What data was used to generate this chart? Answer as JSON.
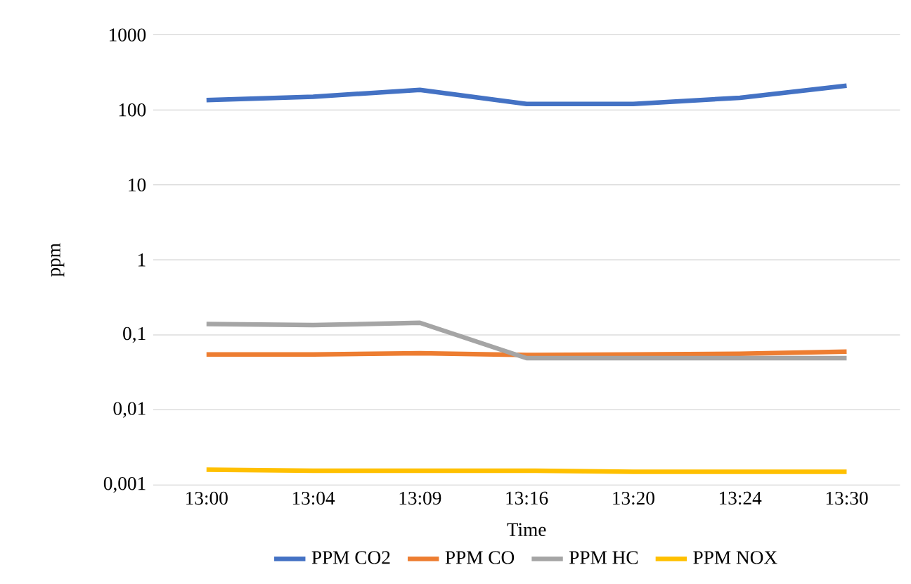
{
  "chart_data": {
    "type": "line",
    "xlabel": "Time",
    "ylabel": "ppm",
    "categories": [
      "13:00",
      "13:04",
      "13:09",
      "13:16",
      "13:20",
      "13:24",
      "13:30"
    ],
    "series": [
      {
        "name": "PPM CO2",
        "color": "#4472c4",
        "values": [
          135,
          150,
          185,
          120,
          120,
          145,
          210
        ]
      },
      {
        "name": "PPM CO",
        "color": "#ed7d31",
        "values": [
          0.055,
          0.055,
          0.057,
          0.054,
          0.055,
          0.056,
          0.06
        ]
      },
      {
        "name": "PPM HC",
        "color": "#a5a5a5",
        "values": [
          0.14,
          0.135,
          0.145,
          0.049,
          0.049,
          0.049,
          0.049
        ]
      },
      {
        "name": "PPM NOX",
        "color": "#ffc000",
        "values": [
          0.0016,
          0.00155,
          0.00155,
          0.00155,
          0.0015,
          0.0015,
          0.0015
        ]
      }
    ],
    "log": "y",
    "ylim": [
      0.001,
      1000
    ],
    "yticks": [
      {
        "value": 0.001,
        "label": "0,001"
      },
      {
        "value": 0.01,
        "label": "0,01"
      },
      {
        "value": 0.1,
        "label": "0,1"
      },
      1,
      10,
      100,
      1000
    ],
    "grid": "y",
    "legend": "bottom",
    "marker": "none",
    "line_style": "solid"
  }
}
